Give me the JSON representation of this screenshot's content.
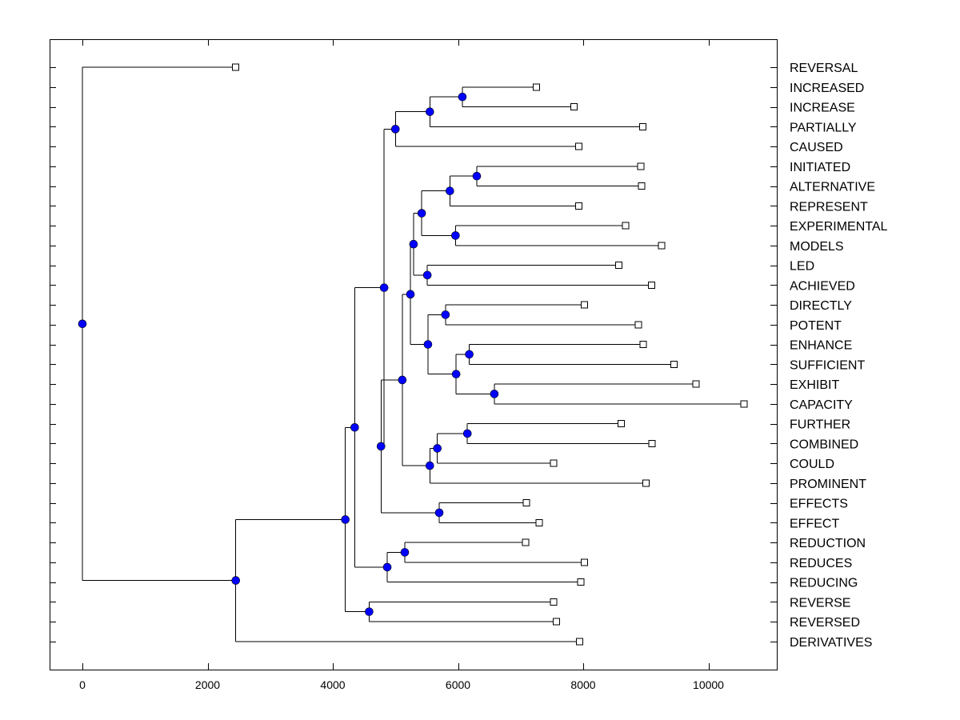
{
  "chart_data": {
    "type": "dendrogram",
    "title": "",
    "xlabel": "",
    "ylabel": "",
    "xlim": [
      -500,
      11200
    ],
    "xticks": [
      0,
      2000,
      4000,
      6000,
      8000,
      10000
    ],
    "xtick_labels": [
      "0",
      "2000",
      "4000",
      "6000",
      "8000",
      "10000"
    ],
    "leaves": [
      {
        "id": "REVERSAL",
        "label": "REVERSAL",
        "height": 2450
      },
      {
        "id": "INCREASED",
        "label": "INCREASED",
        "height": 7250
      },
      {
        "id": "INCREASE",
        "label": "INCREASE",
        "height": 7850
      },
      {
        "id": "PARTIALLY",
        "label": "PARTIALLY",
        "height": 8950
      },
      {
        "id": "CAUSED",
        "label": "CAUSED",
        "height": 7930
      },
      {
        "id": "INITIATED",
        "label": "INITIATED",
        "height": 8920
      },
      {
        "id": "ALTERNATIVE",
        "label": "ALTERNATIVE",
        "height": 8930
      },
      {
        "id": "REPRESENT",
        "label": "REPRESENT",
        "height": 7930
      },
      {
        "id": "EXPERIMENTAL",
        "label": "EXPERIMENTAL",
        "height": 8680
      },
      {
        "id": "MODELS",
        "label": "MODELS",
        "height": 9250
      },
      {
        "id": "LED",
        "label": "LED",
        "height": 8570
      },
      {
        "id": "ACHIEVED",
        "label": "ACHIEVED",
        "height": 9090
      },
      {
        "id": "DIRECTLY",
        "label": "DIRECTLY",
        "height": 8020
      },
      {
        "id": "POTENT",
        "label": "POTENT",
        "height": 8880
      },
      {
        "id": "ENHANCE",
        "label": "ENHANCE",
        "height": 8960
      },
      {
        "id": "SUFFICIENT",
        "label": "SUFFICIENT",
        "height": 9450
      },
      {
        "id": "EXHIBIT",
        "label": "EXHIBIT",
        "height": 9800
      },
      {
        "id": "CAPACITY",
        "label": "CAPACITY",
        "height": 10570
      },
      {
        "id": "FURTHER",
        "label": "FURTHER",
        "height": 8610
      },
      {
        "id": "COMBINED",
        "label": "COMBINED",
        "height": 9100
      },
      {
        "id": "COULD",
        "label": "COULD",
        "height": 7530
      },
      {
        "id": "PROMINENT",
        "label": "PROMINENT",
        "height": 9000
      },
      {
        "id": "EFFECTS",
        "label": "EFFECTS",
        "height": 7090
      },
      {
        "id": "EFFECT",
        "label": "EFFECT",
        "height": 7300
      },
      {
        "id": "REDUCTION",
        "label": "REDUCTION",
        "height": 7080
      },
      {
        "id": "REDUCES",
        "label": "REDUCES",
        "height": 8020
      },
      {
        "id": "REDUCING",
        "label": "REDUCING",
        "height": 7960
      },
      {
        "id": "REVERSE",
        "label": "REVERSE",
        "height": 7530
      },
      {
        "id": "REVERSED",
        "label": "REVERSED",
        "height": 7570
      },
      {
        "id": "DERIVATIVES",
        "label": "DERIVATIVES",
        "height": 7940
      }
    ],
    "nodes": [
      {
        "id": "n_incr",
        "height": 6070,
        "children": [
          "INCREASED",
          "INCREASE"
        ]
      },
      {
        "id": "n_incr_part",
        "height": 5550,
        "children": [
          "n_incr",
          "PARTIALLY"
        ]
      },
      {
        "id": "n_incr_caus",
        "height": 5000,
        "children": [
          "n_incr_part",
          "CAUSED"
        ]
      },
      {
        "id": "n_init_alt",
        "height": 6300,
        "children": [
          "INITIATED",
          "ALTERNATIVE"
        ]
      },
      {
        "id": "n_init_rep",
        "height": 5870,
        "children": [
          "n_init_alt",
          "REPRESENT"
        ]
      },
      {
        "id": "n_exp_mod",
        "height": 5960,
        "children": [
          "EXPERIMENTAL",
          "MODELS"
        ]
      },
      {
        "id": "n_group_a",
        "height": 5420,
        "children": [
          "n_init_rep",
          "n_exp_mod"
        ]
      },
      {
        "id": "n_led_ach",
        "height": 5510,
        "children": [
          "LED",
          "ACHIEVED"
        ]
      },
      {
        "id": "n_group_b",
        "height": 5290,
        "children": [
          "n_group_a",
          "n_led_ach"
        ]
      },
      {
        "id": "n_dir_pot",
        "height": 5800,
        "children": [
          "DIRECTLY",
          "POTENT"
        ]
      },
      {
        "id": "n_enh_suf",
        "height": 6180,
        "children": [
          "ENHANCE",
          "SUFFICIENT"
        ]
      },
      {
        "id": "n_exh_cap",
        "height": 6580,
        "children": [
          "EXHIBIT",
          "CAPACITY"
        ]
      },
      {
        "id": "n_enh_exh",
        "height": 5970,
        "children": [
          "n_enh_suf",
          "n_exh_cap"
        ]
      },
      {
        "id": "n_dir_enh",
        "height": 5520,
        "children": [
          "n_dir_pot",
          "n_enh_exh"
        ]
      },
      {
        "id": "n_group_c",
        "height": 5240,
        "children": [
          "n_group_b",
          "n_dir_enh"
        ]
      },
      {
        "id": "n_fur_com",
        "height": 6150,
        "children": [
          "FURTHER",
          "COMBINED"
        ]
      },
      {
        "id": "n_fur_cou",
        "height": 5670,
        "children": [
          "n_fur_com",
          "COULD"
        ]
      },
      {
        "id": "n_fur_pro",
        "height": 5550,
        "children": [
          "n_fur_cou",
          "PROMINENT"
        ]
      },
      {
        "id": "n_group_d",
        "height": 5110,
        "children": [
          "n_group_c",
          "n_fur_pro"
        ]
      },
      {
        "id": "n_eff",
        "height": 5700,
        "children": [
          "EFFECTS",
          "EFFECT"
        ]
      },
      {
        "id": "n_group_e",
        "height": 4770,
        "children": [
          "n_group_d",
          "n_eff"
        ]
      },
      {
        "id": "n_group_f",
        "height": 4820,
        "children": [
          "n_incr_caus",
          "n_group_e"
        ]
      },
      {
        "id": "n_red",
        "height": 5150,
        "children": [
          "REDUCTION",
          "REDUCES"
        ]
      },
      {
        "id": "n_red_ing",
        "height": 4870,
        "children": [
          "n_red",
          "REDUCING"
        ]
      },
      {
        "id": "n_group_g",
        "height": 4350,
        "children": [
          "n_group_f",
          "n_red_ing"
        ]
      },
      {
        "id": "n_rev",
        "height": 4580,
        "children": [
          "REVERSE",
          "REVERSED"
        ]
      },
      {
        "id": "n_group_h",
        "height": 4200,
        "children": [
          "n_group_g",
          "n_rev"
        ]
      },
      {
        "id": "n_group_i",
        "height": 2450,
        "children": [
          "n_group_h",
          "DERIVATIVES"
        ]
      },
      {
        "id": "n_root",
        "height": 0,
        "children": [
          "REVERSAL",
          "n_group_i"
        ]
      }
    ],
    "root": "n_root",
    "colors": {
      "node_fill": "#0000ff",
      "leaf_fill": "#ffffff",
      "line": "#000000",
      "background": "#ffffff"
    }
  }
}
